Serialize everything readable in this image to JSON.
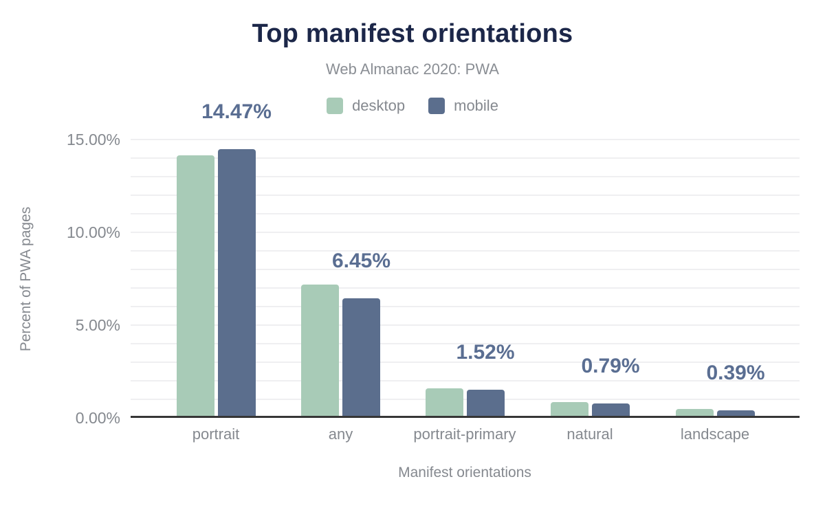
{
  "chart_data": {
    "type": "bar",
    "title": "Top manifest orientations",
    "subtitle": "Web Almanac 2020: PWA",
    "xlabel": "Manifest orientations",
    "ylabel": "Percent of PWA pages",
    "categories": [
      "portrait",
      "any",
      "portrait-primary",
      "natural",
      "landscape"
    ],
    "series": [
      {
        "name": "desktop",
        "color": "#a8cbb7",
        "values": [
          14.15,
          7.2,
          1.6,
          0.85,
          0.5
        ]
      },
      {
        "name": "mobile",
        "color": "#5b6e8d",
        "values": [
          14.47,
          6.45,
          1.52,
          0.79,
          0.39
        ]
      }
    ],
    "value_labels": [
      "14.47%",
      "6.45%",
      "1.52%",
      "0.79%",
      "0.39%"
    ],
    "value_labels_series": "mobile",
    "y_ticks": [
      {
        "value": 0,
        "label": "0.00%"
      },
      {
        "value": 5,
        "label": "5.00%"
      },
      {
        "value": 10,
        "label": "10.00%"
      },
      {
        "value": 15,
        "label": "15.00%"
      }
    ],
    "ylim": [
      0,
      15
    ],
    "grid": {
      "orientation": "horizontal",
      "step_pct": 1,
      "color": "#efeff1"
    },
    "legend_position": "top",
    "colors": {
      "title_text": "#1c2749",
      "muted_text": "#85898f",
      "value_label_text": "#5a6e92",
      "axis_line": "#363636",
      "background": "#ffffff"
    }
  }
}
